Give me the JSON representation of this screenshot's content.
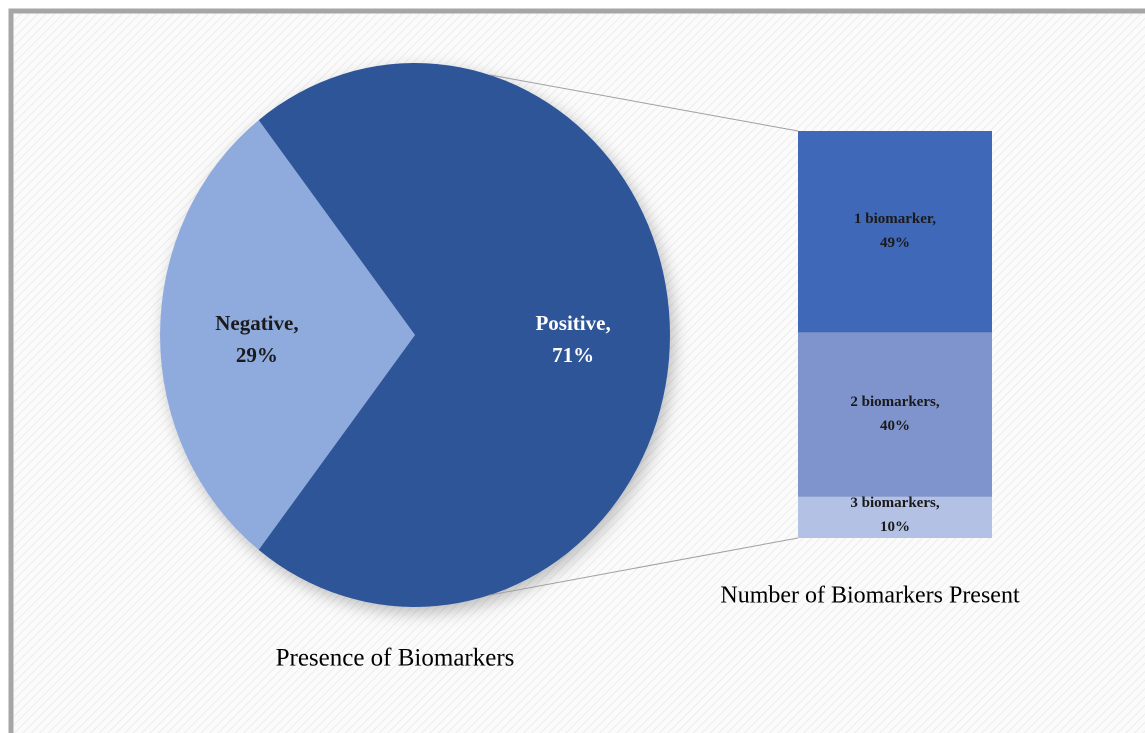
{
  "chart_data": [
    {
      "type": "pie",
      "title": "Presence of Biomarkers",
      "categories": [
        "Negative,",
        "Positive,"
      ],
      "values": [
        29,
        71
      ],
      "value_labels": [
        "29%",
        "71%"
      ],
      "colors": [
        "#8faadc",
        "#2f5597"
      ]
    },
    {
      "type": "bar",
      "stacked": true,
      "title": "Number of Biomarkers Present",
      "series": [
        {
          "name": "1 biomarker,",
          "color": "#4068b8",
          "values": [
            49
          ],
          "value_labels": [
            "49%"
          ]
        },
        {
          "name": "2 biomarkers,",
          "color": "#7f94cc",
          "values": [
            40
          ],
          "value_labels": [
            "40%"
          ]
        },
        {
          "name": "3 biomarkers,",
          "color": "#b3c1e4",
          "values": [
            10
          ],
          "value_labels": [
            "10%"
          ]
        }
      ]
    }
  ]
}
